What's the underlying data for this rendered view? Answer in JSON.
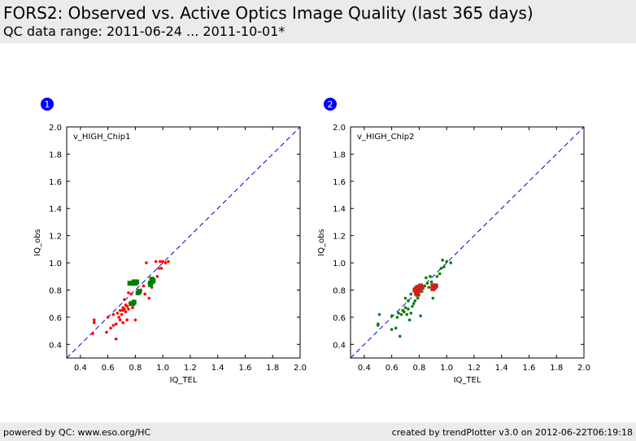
{
  "header": {
    "title": "FORS2: Observed vs. Active Optics Image Quality (last 365 days)",
    "subtitle": "QC data range: 2011-06-24 ... 2011-10-01*"
  },
  "footer": {
    "left": "powered by QC: www.eso.org/HC",
    "right": "created by trendPlotter v3.0 on 2012-06-22T06:19:18"
  },
  "colors": {
    "red": "#ff0000",
    "green": "#008000",
    "darkred": "#cc2222",
    "reference_line": "#0000cc",
    "badge": "#0000ff"
  },
  "chart_data": [
    {
      "type": "scatter",
      "badge": "1",
      "label": "v_HIGH_Chip1",
      "xlabel": "IQ_TEL",
      "ylabel": "IQ_obs",
      "xlim": [
        0.3,
        2.0
      ],
      "ylim": [
        0.3,
        2.0
      ],
      "xticks": [
        "0.4",
        "0.6",
        "0.8",
        "1.0",
        "1.2",
        "1.4",
        "1.6",
        "1.8",
        "2.0"
      ],
      "yticks": [
        "0.4",
        "0.6",
        "0.8",
        "1.0",
        "1.2",
        "1.4",
        "1.6",
        "1.8",
        "2.0"
      ],
      "reference_line": "y = x",
      "series": [
        {
          "name": "red",
          "color": "#ff0000",
          "marker": "dot",
          "points": [
            [
              0.49,
              0.48
            ],
            [
              0.5,
              0.56
            ],
            [
              0.5,
              0.58
            ],
            [
              0.59,
              0.49
            ],
            [
              0.6,
              0.6
            ],
            [
              0.62,
              0.52
            ],
            [
              0.64,
              0.54
            ],
            [
              0.64,
              0.62
            ],
            [
              0.66,
              0.44
            ],
            [
              0.66,
              0.55
            ],
            [
              0.67,
              0.63
            ],
            [
              0.68,
              0.6
            ],
            [
              0.69,
              0.58
            ],
            [
              0.69,
              0.65
            ],
            [
              0.7,
              0.62
            ],
            [
              0.71,
              0.67
            ],
            [
              0.71,
              0.56
            ],
            [
              0.72,
              0.66
            ],
            [
              0.72,
              0.73
            ],
            [
              0.73,
              0.64
            ],
            [
              0.74,
              0.68
            ],
            [
              0.74,
              0.58
            ],
            [
              0.75,
              0.66
            ],
            [
              0.75,
              0.78
            ],
            [
              0.76,
              0.7
            ],
            [
              0.77,
              0.77
            ],
            [
              0.78,
              0.67
            ],
            [
              0.79,
              0.72
            ],
            [
              0.8,
              0.58
            ],
            [
              0.82,
              0.78
            ],
            [
              0.84,
              0.8
            ],
            [
              0.86,
              0.83
            ],
            [
              0.87,
              0.77
            ],
            [
              0.88,
              1.0
            ],
            [
              0.9,
              0.85
            ],
            [
              0.9,
              0.74
            ],
            [
              0.92,
              0.82
            ],
            [
              0.93,
              0.87
            ],
            [
              0.95,
              1.01
            ],
            [
              0.96,
              0.9
            ],
            [
              0.97,
              0.96
            ],
            [
              0.98,
              1.01
            ],
            [
              0.99,
              0.96
            ],
            [
              1.0,
              1.01
            ],
            [
              1.02,
              1.0
            ],
            [
              1.04,
              1.01
            ],
            [
              0.71,
              0.65
            ],
            [
              0.73,
              0.69
            ]
          ]
        },
        {
          "name": "green",
          "color": "#008000",
          "marker": "square",
          "points": [
            [
              0.76,
              0.85
            ],
            [
              0.78,
              0.85
            ],
            [
              0.79,
              0.86
            ],
            [
              0.8,
              0.85
            ],
            [
              0.81,
              0.86
            ],
            [
              0.82,
              0.78
            ],
            [
              0.83,
              0.79
            ],
            [
              0.78,
              0.7
            ],
            [
              0.79,
              0.71
            ],
            [
              0.91,
              0.85
            ],
            [
              0.92,
              0.86
            ],
            [
              0.92,
              0.88
            ],
            [
              0.93,
              0.87
            ],
            [
              0.91,
              0.84
            ],
            [
              0.77,
              0.7
            ]
          ]
        }
      ]
    },
    {
      "type": "scatter",
      "badge": "2",
      "label": "v_HIGH_Chip2",
      "xlabel": "IQ_TEL",
      "ylabel": "IQ_obs",
      "xlim": [
        0.3,
        2.0
      ],
      "ylim": [
        0.3,
        2.0
      ],
      "xticks": [
        "0.4",
        "0.6",
        "0.8",
        "1.0",
        "1.2",
        "1.4",
        "1.6",
        "1.8",
        "2.0"
      ],
      "yticks": [
        "0.4",
        "0.6",
        "0.8",
        "1.0",
        "1.2",
        "1.4",
        "1.6",
        "1.8",
        "2.0"
      ],
      "reference_line": "y = x",
      "series": [
        {
          "name": "green",
          "color": "#008000",
          "marker": "dot",
          "points": [
            [
              0.5,
              0.54
            ],
            [
              0.5,
              0.55
            ],
            [
              0.51,
              0.62
            ],
            [
              0.6,
              0.51
            ],
            [
              0.6,
              0.61
            ],
            [
              0.63,
              0.52
            ],
            [
              0.64,
              0.6
            ],
            [
              0.65,
              0.63
            ],
            [
              0.66,
              0.46
            ],
            [
              0.67,
              0.62
            ],
            [
              0.68,
              0.65
            ],
            [
              0.69,
              0.64
            ],
            [
              0.7,
              0.67
            ],
            [
              0.7,
              0.74
            ],
            [
              0.71,
              0.62
            ],
            [
              0.72,
              0.66
            ],
            [
              0.72,
              0.72
            ],
            [
              0.73,
              0.58
            ],
            [
              0.74,
              0.63
            ],
            [
              0.74,
              0.77
            ],
            [
              0.75,
              0.68
            ],
            [
              0.76,
              0.7
            ],
            [
              0.77,
              0.72
            ],
            [
              0.78,
              0.76
            ],
            [
              0.79,
              0.74
            ],
            [
              0.8,
              0.81
            ],
            [
              0.81,
              0.61
            ],
            [
              0.82,
              0.79
            ],
            [
              0.84,
              0.83
            ],
            [
              0.86,
              0.85
            ],
            [
              0.87,
              0.82
            ],
            [
              0.88,
              0.9
            ],
            [
              0.89,
              0.86
            ],
            [
              0.9,
              0.74
            ],
            [
              0.91,
              0.84
            ],
            [
              0.93,
              0.9
            ],
            [
              0.95,
              0.92
            ],
            [
              0.96,
              0.96
            ],
            [
              0.97,
              1.02
            ],
            [
              0.98,
              0.97
            ],
            [
              1.0,
              1.01
            ],
            [
              1.03,
              1.0
            ],
            [
              0.85,
              0.89
            ]
          ]
        },
        {
          "name": "darkred",
          "color": "#cc2222",
          "marker": "square",
          "points": [
            [
              0.77,
              0.8
            ],
            [
              0.78,
              0.78
            ],
            [
              0.79,
              0.82
            ],
            [
              0.8,
              0.8
            ],
            [
              0.81,
              0.83
            ],
            [
              0.82,
              0.82
            ],
            [
              0.78,
              0.81
            ],
            [
              0.9,
              0.81
            ],
            [
              0.91,
              0.82
            ],
            [
              0.92,
              0.83
            ],
            [
              0.9,
              0.83
            ],
            [
              0.79,
              0.77
            ]
          ]
        }
      ]
    }
  ]
}
